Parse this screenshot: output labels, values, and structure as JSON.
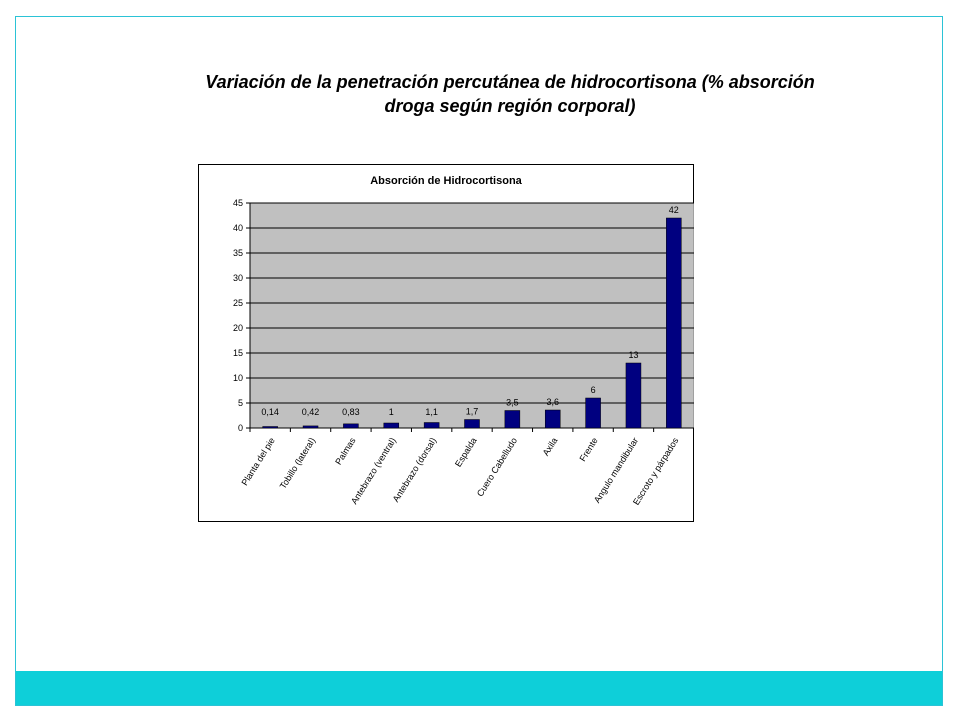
{
  "slide": {
    "title_line1": "Variación de la penetración percutánea de hidrocortisona (% absorción",
    "title_line2": "droga según región corporal)"
  },
  "colors": {
    "frame": "#2bc3d6",
    "footer": "#0ecfd9",
    "plot_area": "#c0c0c0",
    "bar": "#000080"
  },
  "chart_data": {
    "type": "bar",
    "title": "Absorción de Hidrocortisona",
    "xlabel": "",
    "ylabel": "",
    "ylim": [
      0,
      45
    ],
    "yticks": [
      0,
      5,
      10,
      15,
      20,
      25,
      30,
      35,
      40,
      45
    ],
    "grid": true,
    "legend": "none",
    "categories": [
      "Planta del pie",
      "Tobillo (lateral)",
      "Palmas",
      "Antebrazo (ventral)",
      "Antebrazo (dorsal)",
      "Espalda",
      "Cuero Cabelludo",
      "Axila",
      "Frente",
      "Angulo mandibular",
      "Escroto y párpados"
    ],
    "values": [
      0.14,
      0.42,
      0.83,
      1,
      1.1,
      1.7,
      3.5,
      3.6,
      6,
      13,
      42
    ],
    "value_labels": [
      "0,14",
      "0,42",
      "0,83",
      "1",
      "1,1",
      "1,7",
      "3,5",
      "3,6",
      "6",
      "13",
      "42"
    ]
  }
}
